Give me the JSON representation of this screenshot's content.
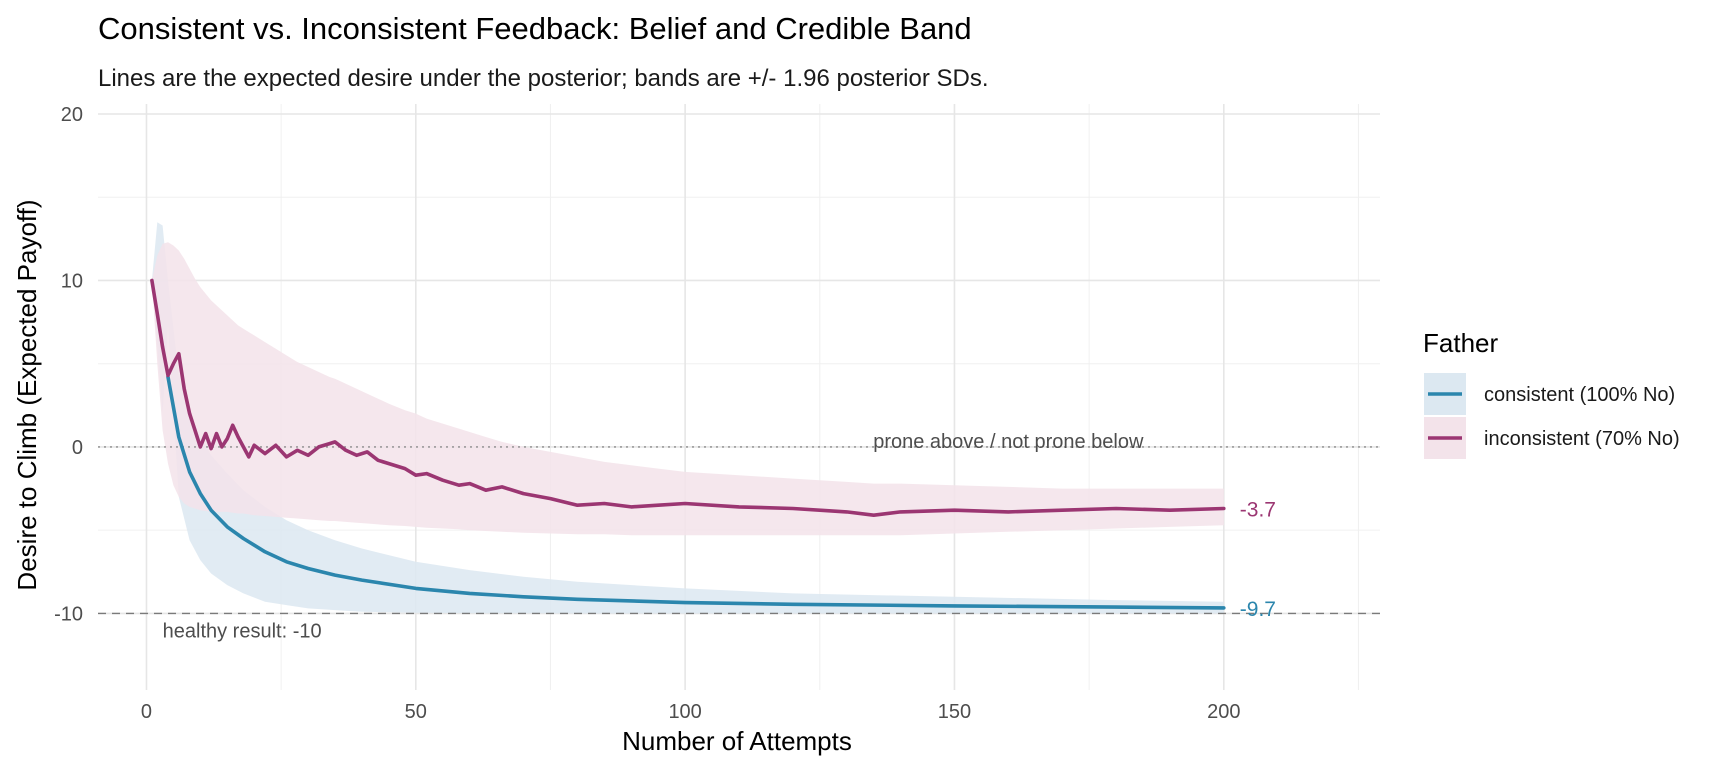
{
  "chart_data": {
    "type": "line",
    "title": "Consistent vs. Inconsistent Feedback: Belief and Credible Band",
    "subtitle": "Lines are the expected desire under the posterior; bands are +/- 1.96 posterior SDs.",
    "xlabel": "Number of Attempts",
    "ylabel": "Desire to Climb (Expected Payoff)",
    "xlim": [
      -9,
      229
    ],
    "ylim": [
      -14.6,
      20.6
    ],
    "x_ticks": [
      0,
      50,
      100,
      150,
      200
    ],
    "y_ticks": [
      -10,
      0,
      10,
      20
    ],
    "grid": true,
    "legend": {
      "title": "Father",
      "placement": "right",
      "entries": [
        "consistent (100% No)",
        "inconsistent (70% No)"
      ]
    },
    "reference_lines": [
      {
        "y": 0,
        "style": "dotted",
        "label": "prone above / not prone below",
        "label_x": 160
      },
      {
        "y": -10,
        "style": "dashed",
        "label": "healthy result: -10",
        "label_x": 3
      }
    ],
    "series": [
      {
        "name": "consistent (100% No)",
        "color": "#2b86ad",
        "band_color": "#dce8f1",
        "end_label": "-9.7",
        "x": [
          4,
          6,
          8,
          10,
          12,
          15,
          18,
          22,
          26,
          30,
          35,
          40,
          50,
          60,
          70,
          80,
          100,
          120,
          150,
          180,
          200
        ],
        "y": [
          4.2,
          0.6,
          -1.5,
          -2.8,
          -3.8,
          -4.8,
          -5.5,
          -6.3,
          -6.9,
          -7.3,
          -7.7,
          -8.0,
          -8.5,
          -8.8,
          -9.0,
          -9.15,
          -9.35,
          -9.45,
          -9.55,
          -9.62,
          -9.67
        ],
        "lower": [
          7.3,
          -3.0,
          -5.6,
          -6.8,
          -7.6,
          -8.3,
          -8.8,
          -9.3,
          -9.5,
          -9.7,
          -9.8,
          -9.9,
          -9.96,
          -9.98,
          -9.99,
          -10.0,
          -10.0,
          -10.0,
          -10.0,
          -10.0,
          -10.0
        ],
        "upper": [
          10.0,
          4.3,
          2.2,
          0.6,
          -0.5,
          -1.6,
          -2.6,
          -3.6,
          -4.4,
          -5.0,
          -5.6,
          -6.1,
          -6.9,
          -7.4,
          -7.8,
          -8.1,
          -8.5,
          -8.8,
          -9.0,
          -9.2,
          -9.3
        ],
        "band_start": {
          "x": [
            1,
            2,
            3
          ],
          "lower": [
            10.0,
            6.0,
            2.0
          ],
          "upper": [
            10.0,
            13.5,
            13.3
          ]
        }
      },
      {
        "name": "inconsistent (70% No)",
        "color": "#9b3672",
        "band_color": "#f3e3ea",
        "end_label": "-3.7",
        "x": [
          1,
          2,
          3,
          4,
          5,
          6,
          7,
          8,
          9,
          10,
          11,
          12,
          13,
          14,
          15,
          16,
          17,
          18,
          19,
          20,
          22,
          24,
          26,
          28,
          30,
          32,
          34,
          35,
          37,
          39,
          41,
          43,
          45,
          48,
          50,
          52,
          55,
          58,
          60,
          63,
          66,
          70,
          75,
          80,
          85,
          90,
          95,
          100,
          110,
          120,
          130,
          135,
          140,
          150,
          160,
          170,
          180,
          190,
          200
        ],
        "y": [
          10.0,
          8.0,
          6.0,
          4.3,
          5.0,
          5.6,
          3.5,
          2.0,
          1.0,
          0.0,
          0.8,
          -0.1,
          0.8,
          0.0,
          0.5,
          1.3,
          0.6,
          0.0,
          -0.6,
          0.1,
          -0.4,
          0.1,
          -0.6,
          -0.2,
          -0.5,
          0.0,
          0.2,
          0.3,
          -0.2,
          -0.5,
          -0.3,
          -0.8,
          -1.0,
          -1.3,
          -1.7,
          -1.6,
          -2.0,
          -2.3,
          -2.2,
          -2.6,
          -2.4,
          -2.8,
          -3.1,
          -3.5,
          -3.4,
          -3.6,
          -3.5,
          -3.4,
          -3.6,
          -3.7,
          -3.9,
          -4.1,
          -3.9,
          -3.8,
          -3.9,
          -3.8,
          -3.7,
          -3.8,
          -3.7
        ],
        "lower": [
          10.0,
          5.0,
          1.0,
          -1.0,
          -2.3,
          -3.0,
          -3.4,
          -3.6,
          -3.7,
          -3.8,
          -3.85,
          -3.9,
          -3.9,
          -3.9,
          -3.9,
          -3.95,
          -4.0,
          -4.0,
          -4.05,
          -4.1,
          -4.15,
          -4.2,
          -4.25,
          -4.3,
          -4.35,
          -4.4,
          -4.45,
          -4.45,
          -4.5,
          -4.55,
          -4.6,
          -4.65,
          -4.7,
          -4.75,
          -4.8,
          -4.85,
          -4.9,
          -4.95,
          -5.0,
          -5.05,
          -5.1,
          -5.15,
          -5.2,
          -5.25,
          -5.25,
          -5.3,
          -5.3,
          -5.3,
          -5.3,
          -5.3,
          -5.3,
          -5.3,
          -5.3,
          -5.2,
          -5.1,
          -5.0,
          -4.9,
          -4.8,
          -4.7
        ],
        "upper": [
          10.0,
          11.5,
          12.2,
          12.3,
          12.1,
          11.8,
          11.3,
          10.7,
          10.1,
          9.6,
          9.2,
          8.8,
          8.5,
          8.2,
          7.9,
          7.6,
          7.3,
          7.1,
          6.9,
          6.7,
          6.3,
          5.9,
          5.5,
          5.1,
          4.8,
          4.5,
          4.2,
          4.1,
          3.8,
          3.5,
          3.2,
          2.9,
          2.6,
          2.2,
          2.0,
          1.7,
          1.4,
          1.1,
          0.9,
          0.6,
          0.3,
          0.0,
          -0.3,
          -0.6,
          -0.9,
          -1.1,
          -1.3,
          -1.5,
          -1.7,
          -1.9,
          -2.1,
          -2.2,
          -2.2,
          -2.3,
          -2.4,
          -2.5,
          -2.5,
          -2.5,
          -2.5
        ]
      }
    ]
  }
}
